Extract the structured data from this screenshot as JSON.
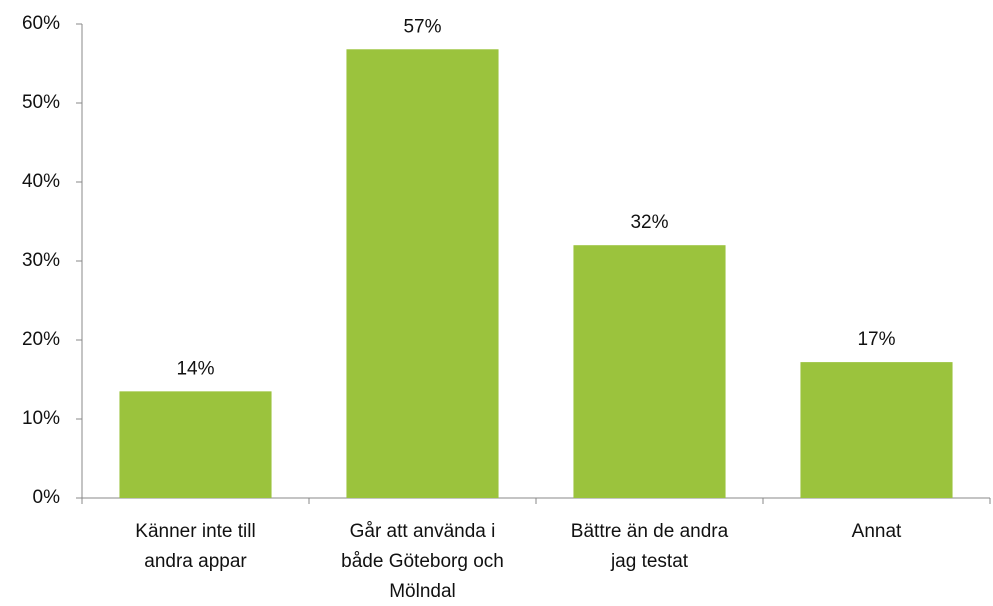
{
  "chart_data": {
    "type": "bar",
    "categories": [
      [
        "Känner inte till",
        "andra appar"
      ],
      [
        "Går att använda i",
        "både Göteborg och",
        "Mölndal"
      ],
      [
        "Bättre än de andra",
        "jag testat"
      ],
      [
        "Annat"
      ]
    ],
    "values": [
      13.5,
      56.8,
      32,
      17.2
    ],
    "value_labels": [
      "14%",
      "57%",
      "32%",
      "17%"
    ],
    "color": "#9bc33d",
    "ylim": [
      0,
      60
    ],
    "yticks": [
      {
        "value": 0,
        "label": "0%"
      },
      {
        "value": 10,
        "label": "10%"
      },
      {
        "value": 20,
        "label": "20%"
      },
      {
        "value": 30,
        "label": "30%"
      },
      {
        "value": 40,
        "label": "40%"
      },
      {
        "value": 50,
        "label": "50%"
      },
      {
        "value": 60,
        "label": "60%"
      }
    ],
    "grid": false
  }
}
